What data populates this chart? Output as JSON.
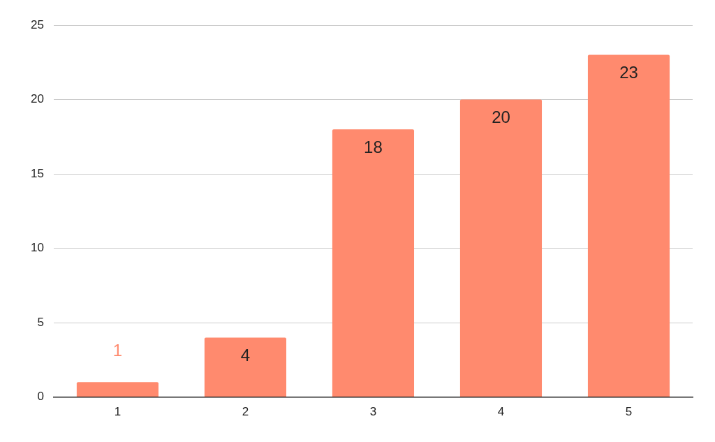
{
  "chart_data": {
    "type": "bar",
    "categories": [
      "1",
      "2",
      "3",
      "4",
      "5"
    ],
    "values": [
      1,
      4,
      18,
      20,
      23
    ],
    "color": "#ff8a6e",
    "ylim": [
      0,
      25
    ],
    "yticks": [
      0,
      5,
      10,
      15,
      20,
      25
    ],
    "grid": "y",
    "legend": false,
    "data_labels": true
  }
}
